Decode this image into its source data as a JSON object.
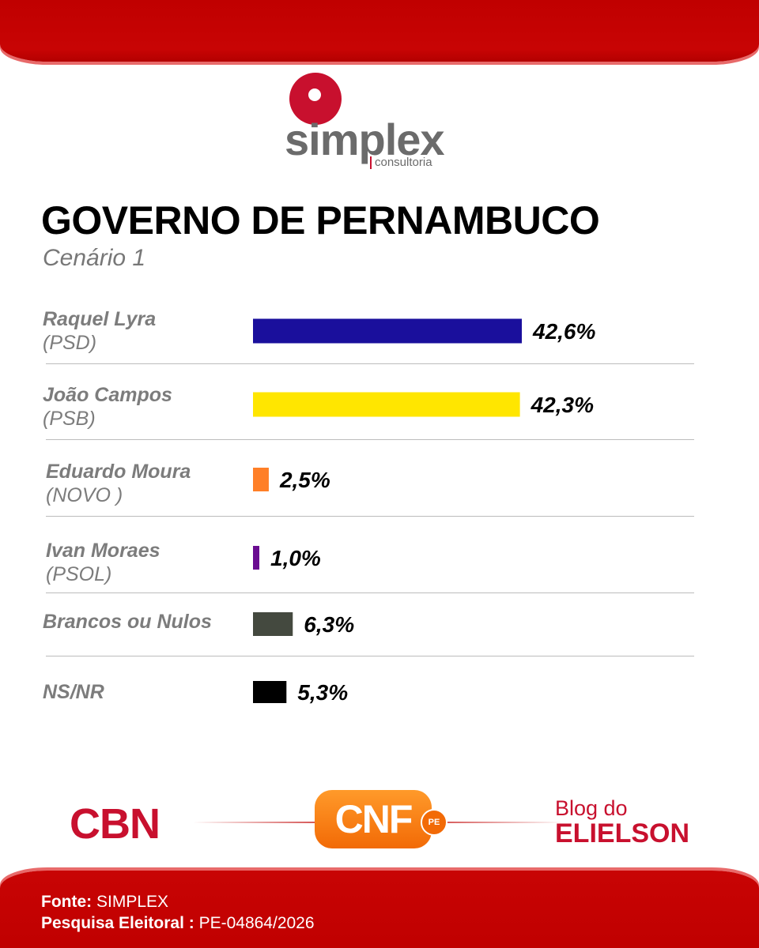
{
  "header": {
    "logo_word": "simplex",
    "logo_sub": "consultoria",
    "title": "GOVERNO DE PERNAMBUCO",
    "subtitle": "Cenário 1"
  },
  "chart_data": {
    "type": "bar",
    "orientation": "horizontal",
    "title": "GOVERNO DE PERNAMBUCO",
    "subtitle": "Cenário 1",
    "categories": [
      "Raquel Lyra",
      "João Campos",
      "Eduardo Moura",
      "Ivan Moraes",
      "Brancos ou Nulos",
      "NS/NR"
    ],
    "parties": [
      "(PSD)",
      "(PSB)",
      "(NOVO )",
      "(PSOL)",
      "",
      ""
    ],
    "values": [
      42.6,
      42.3,
      2.5,
      1.0,
      6.3,
      5.3
    ],
    "value_labels": [
      "42,6%",
      "42,3%",
      "2,5%",
      "1,0%",
      "6,3%",
      "5,3%"
    ],
    "colors": [
      "#1a0f9c",
      "#ffe600",
      "#ff7f27",
      "#6a0d91",
      "#44493f",
      "#000000"
    ],
    "unit": "%",
    "grid": false,
    "legend": "none"
  },
  "logos": {
    "cbn": "CBN",
    "cnf": "CNF",
    "cnf_badge": "PE",
    "blog_line1": "Blog do",
    "blog_line2": "ELIELSON"
  },
  "footer": {
    "source_label": "Fonte:",
    "source_value": " SIMPLEX",
    "survey_label": "Pesquisa Eleitoral :",
    "survey_value": " PE-04864/2026"
  }
}
